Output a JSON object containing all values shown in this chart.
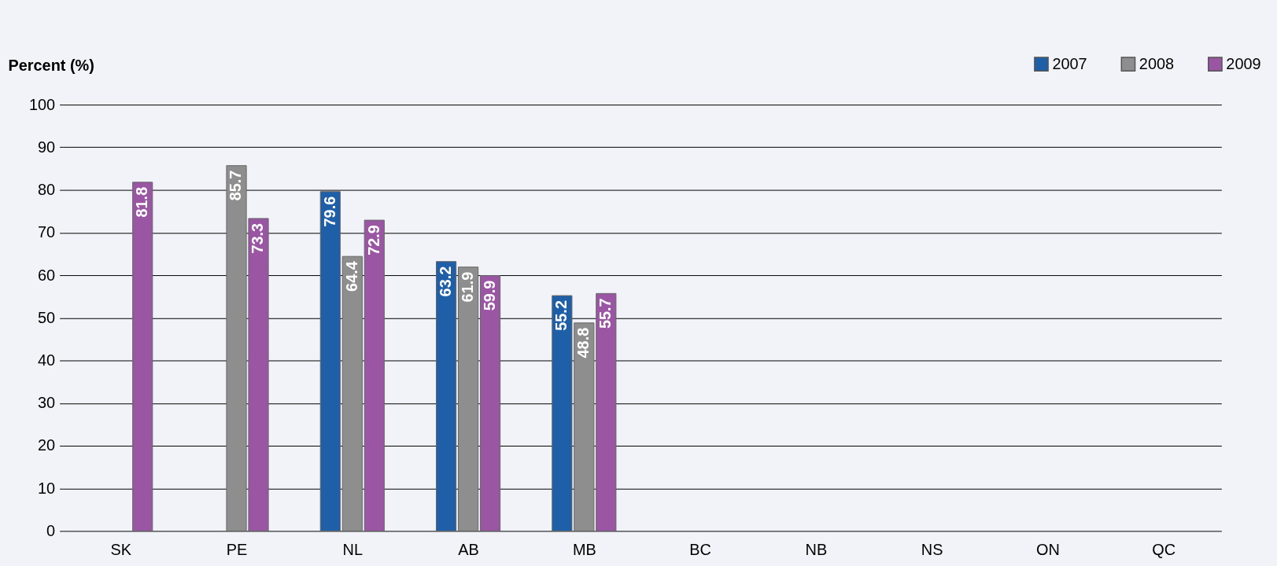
{
  "chart_data": {
    "type": "bar",
    "ylabel": "Percent (%)",
    "categories": [
      "SK",
      "PE",
      "NL",
      "AB",
      "MB",
      "BC",
      "NB",
      "NS",
      "ON",
      "QC"
    ],
    "series": [
      {
        "name": "2007",
        "color": "#1f5fa8",
        "values": [
          null,
          null,
          79.6,
          63.2,
          55.2,
          null,
          null,
          null,
          null,
          null
        ]
      },
      {
        "name": "2008",
        "color": "#8e8e8e",
        "values": [
          null,
          85.7,
          64.4,
          61.9,
          48.8,
          null,
          null,
          null,
          null,
          null
        ]
      },
      {
        "name": "2009",
        "color": "#9a55a3",
        "values": [
          81.8,
          73.3,
          72.9,
          59.9,
          55.7,
          null,
          null,
          null,
          null,
          null
        ]
      }
    ],
    "ylim": [
      0,
      100
    ],
    "yticks": [
      0,
      10,
      20,
      30,
      40,
      50,
      60,
      70,
      80,
      90,
      100
    ],
    "grid": "y",
    "legend": "top right",
    "data_labels": true
  }
}
